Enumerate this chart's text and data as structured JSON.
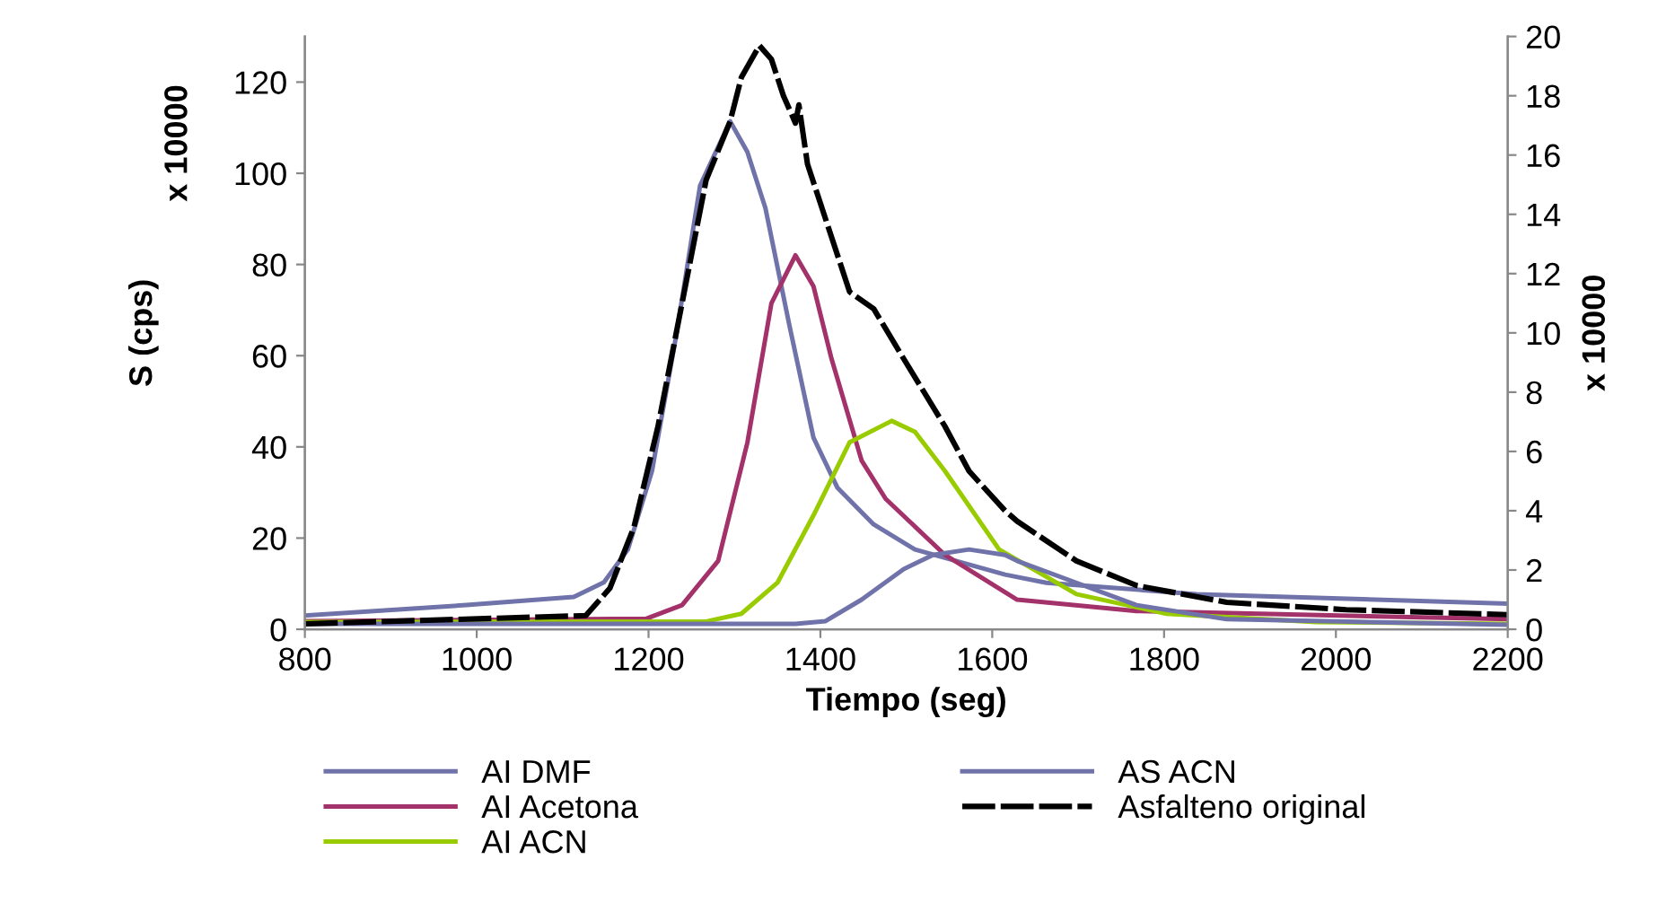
{
  "chart_data": {
    "type": "line",
    "xlabel": "Tiempo (seg)",
    "ylabel": "S (cps)",
    "y2label": "x 10000",
    "annotations": [
      "x 10000"
    ],
    "xlim": [
      800,
      2200
    ],
    "xticks": [
      800,
      1000,
      1200,
      1400,
      1600,
      1800,
      2000,
      2200
    ],
    "ylim": [
      0,
      130
    ],
    "yticks": [
      0,
      20,
      40,
      60,
      80,
      100,
      120
    ],
    "y2lim": [
      0,
      20
    ],
    "y2ticks": [
      0,
      2,
      4,
      6,
      8,
      10,
      12,
      14,
      16,
      18,
      20
    ],
    "grid": false,
    "legend": "bottom",
    "marker": "none",
    "series": [
      {
        "name": "AI DMF",
        "color": "#7072aa",
        "line_style": "solid",
        "x": [
          800,
          988,
          1113,
          1148,
          1176,
          1204,
          1232,
          1260,
          1295,
          1315,
          1336,
          1364,
          1392,
          1420,
          1462,
          1510,
          1615,
          1663,
          1838,
          2200
        ],
        "values": [
          3,
          5.3,
          7.1,
          10.3,
          17.5,
          34.7,
          64.2,
          97.3,
          111.4,
          104.7,
          92.4,
          66.6,
          42,
          31,
          23,
          17.5,
          12,
          10.2,
          7.7,
          5.6
        ]
      },
      {
        "name": "AI Acetona",
        "color": "#a3326a",
        "line_style": "solid",
        "x": [
          800,
          1197,
          1239,
          1281,
          1315,
          1343,
          1371,
          1392,
          1413,
          1448,
          1476,
          1545,
          1629,
          1768,
          2200
        ],
        "values": [
          1.8,
          2.3,
          5.3,
          15,
          40.9,
          71.5,
          82,
          75.2,
          59.3,
          37,
          28.6,
          16.3,
          6.5,
          4,
          2.2
        ]
      },
      {
        "name": "AI ACN",
        "color": "#99cc00",
        "line_style": "solid",
        "x": [
          800,
          1267,
          1308,
          1350,
          1392,
          1434,
          1483,
          1510,
          1545,
          1608,
          1698,
          1803,
          1977,
          2200
        ],
        "values": [
          1.6,
          1.7,
          3.4,
          10.2,
          25,
          41,
          45.7,
          43.3,
          34.7,
          17.5,
          7.7,
          3.4,
          1.6,
          1.2
        ]
      },
      {
        "name": "AS ACN",
        "color": "#7072aa",
        "line_style": "solid",
        "x": [
          800,
          1371,
          1406,
          1448,
          1497,
          1531,
          1573,
          1615,
          1629,
          1698,
          1768,
          1873,
          2200
        ],
        "values": [
          1.2,
          1.2,
          1.8,
          6.5,
          13.2,
          16.3,
          17.5,
          16.3,
          15,
          10.2,
          5.3,
          2.2,
          1
        ]
      },
      {
        "name": "Asfalteno original",
        "color": "#000000",
        "line_style": "dashed",
        "x": [
          800,
          1127,
          1155,
          1183,
          1211,
          1239,
          1267,
          1295,
          1308,
          1329,
          1343,
          1357,
          1371,
          1375,
          1385,
          1406,
          1434,
          1462,
          1497,
          1545,
          1573,
          1615,
          1629,
          1698,
          1768,
          1873,
          2012,
          2200
        ],
        "values": [
          1.2,
          3,
          9,
          22.4,
          44.5,
          71.5,
          98.5,
          111.4,
          121,
          128,
          125,
          117,
          111,
          115,
          102,
          90,
          74,
          70.3,
          59.3,
          44.5,
          34.7,
          26,
          23.7,
          15,
          9.6,
          5.9,
          4.3,
          3.2
        ]
      }
    ]
  }
}
